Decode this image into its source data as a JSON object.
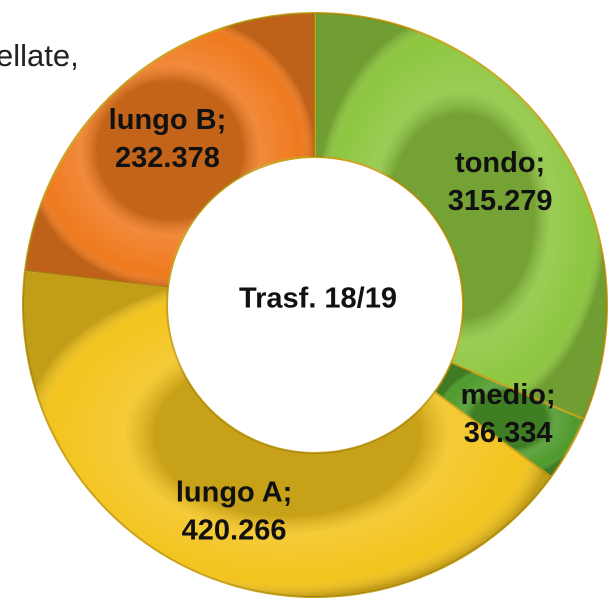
{
  "chart_data": {
    "type": "donut",
    "title": "Trasf. 18/19",
    "annotation": "ellate,",
    "categories": [
      "tondo;",
      "medio;",
      "lungo A;",
      "lungo B;"
    ],
    "values": [
      315279,
      36334,
      420266,
      232378
    ],
    "value_labels": [
      "315.279",
      "36.334",
      "420.266",
      "232.378"
    ],
    "colors": [
      "#8dc63f",
      "#4e9a2b",
      "#f3c41d",
      "#ef7a1f"
    ]
  }
}
